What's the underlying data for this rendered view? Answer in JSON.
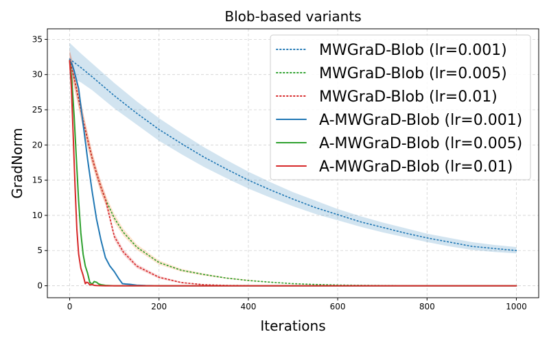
{
  "chart_data": {
    "type": "line",
    "title": "Blob-based variants",
    "xlabel": "Iterations",
    "ylabel": "GradNorm",
    "xlim": [
      -50,
      1050
    ],
    "ylim": [
      -1.7,
      36.5
    ],
    "xticks": [
      0,
      200,
      400,
      600,
      800,
      1000
    ],
    "yticks": [
      0,
      5,
      10,
      15,
      20,
      25,
      30,
      35
    ],
    "grid": true,
    "legend_position": "upper-right",
    "series": [
      {
        "name": "MWGraD-Blob (lr=0.001)",
        "color": "#1f77b4",
        "style": "dotted",
        "band_color": "#1f77b4",
        "x": [
          0,
          25,
          50,
          100,
          150,
          200,
          250,
          300,
          350,
          400,
          450,
          500,
          550,
          600,
          650,
          700,
          750,
          800,
          850,
          900,
          950,
          1000
        ],
        "y": [
          32.2,
          31.0,
          29.7,
          27.0,
          24.5,
          22.2,
          20.2,
          18.3,
          16.6,
          15.0,
          13.6,
          12.3,
          11.1,
          10.1,
          9.1,
          8.3,
          7.5,
          6.8,
          6.2,
          5.6,
          5.3,
          5.0
        ],
        "band": [
          [
            34.5,
            29.6
          ],
          [
            33.0,
            28.9
          ],
          [
            31.6,
            27.8
          ],
          [
            28.8,
            25.2
          ],
          [
            26.2,
            22.9
          ],
          [
            23.8,
            20.6
          ],
          [
            21.7,
            18.7
          ],
          [
            19.7,
            16.9
          ],
          [
            17.9,
            15.3
          ],
          [
            16.2,
            13.8
          ],
          [
            14.7,
            12.5
          ],
          [
            13.3,
            11.3
          ],
          [
            12.1,
            10.2
          ],
          [
            10.9,
            9.3
          ],
          [
            9.9,
            8.4
          ],
          [
            9.0,
            7.6
          ],
          [
            8.2,
            6.9
          ],
          [
            7.4,
            6.2
          ],
          [
            6.8,
            5.6
          ],
          [
            6.2,
            5.1
          ],
          [
            5.8,
            4.8
          ],
          [
            5.5,
            4.6
          ]
        ]
      },
      {
        "name": "MWGraD-Blob (lr=0.005)",
        "color": "#2ca02c",
        "style": "dotted",
        "band_color": "#ff7f0e",
        "x": [
          0,
          10,
          20,
          30,
          40,
          50,
          60,
          70,
          80,
          100,
          120,
          150,
          200,
          250,
          300,
          350,
          400,
          450,
          500,
          550,
          600,
          650,
          700,
          800,
          900,
          1000
        ],
        "y": [
          32.0,
          29.5,
          26.5,
          23.5,
          20.8,
          18.2,
          16.0,
          14.0,
          12.3,
          9.6,
          7.6,
          5.5,
          3.3,
          2.2,
          1.6,
          1.1,
          0.75,
          0.5,
          0.3,
          0.18,
          0.1,
          0.06,
          0.03,
          0.01,
          0.0,
          0.0
        ],
        "band": [
          [
            33.5,
            30.5
          ],
          [
            30.8,
            28.2
          ],
          [
            27.7,
            25.3
          ],
          [
            24.6,
            22.4
          ],
          [
            21.8,
            19.8
          ],
          [
            19.1,
            17.3
          ],
          [
            16.8,
            15.2
          ],
          [
            14.8,
            13.2
          ],
          [
            13.0,
            11.6
          ],
          [
            10.2,
            9.0
          ],
          [
            8.1,
            7.1
          ],
          [
            5.9,
            5.1
          ],
          [
            3.6,
            3.0
          ],
          [
            2.4,
            2.0
          ],
          [
            1.75,
            1.45
          ],
          [
            1.2,
            1.0
          ],
          [
            0.85,
            0.65
          ],
          [
            0.55,
            0.45
          ],
          [
            0.33,
            0.27
          ],
          [
            0.2,
            0.16
          ],
          [
            0.11,
            0.09
          ],
          [
            0.07,
            0.05
          ],
          [
            0.04,
            0.02
          ],
          [
            0.01,
            0.01
          ],
          [
            0,
            0
          ],
          [
            0,
            0
          ]
        ]
      },
      {
        "name": "MWGraD-Blob (lr=0.01)",
        "color": "#d62728",
        "style": "dotted",
        "band_color": "#d62728",
        "x": [
          0,
          10,
          20,
          30,
          40,
          50,
          60,
          70,
          80,
          100,
          120,
          150,
          200,
          250,
          300,
          350,
          400,
          500,
          600,
          800,
          1000
        ],
        "y": [
          32.0,
          29.5,
          26.5,
          23.5,
          20.8,
          18.2,
          16.0,
          14.0,
          12.3,
          7.0,
          4.8,
          2.8,
          1.2,
          0.45,
          0.15,
          0.05,
          0.02,
          0.0,
          0.0,
          0.0,
          0.0
        ],
        "band": [
          [
            33.5,
            30.5
          ],
          [
            30.8,
            28.2
          ],
          [
            27.7,
            25.3
          ],
          [
            24.6,
            22.4
          ],
          [
            21.8,
            19.8
          ],
          [
            19.1,
            17.3
          ],
          [
            16.8,
            15.2
          ],
          [
            14.8,
            13.2
          ],
          [
            13.0,
            11.6
          ],
          [
            7.5,
            6.5
          ],
          [
            5.2,
            4.4
          ],
          [
            3.1,
            2.5
          ],
          [
            1.4,
            1.0
          ],
          [
            0.55,
            0.35
          ],
          [
            0.2,
            0.1
          ],
          [
            0.07,
            0.03
          ],
          [
            0.03,
            0.01
          ],
          [
            0,
            0
          ],
          [
            0,
            0
          ],
          [
            0,
            0
          ],
          [
            0,
            0
          ]
        ]
      },
      {
        "name": "A-MWGraD-Blob (lr=0.001)",
        "color": "#1f77b4",
        "style": "solid",
        "x": [
          0,
          5,
          10,
          20,
          30,
          40,
          50,
          60,
          70,
          80,
          90,
          100,
          110,
          118,
          125,
          135,
          150,
          170,
          200,
          300,
          500,
          1000
        ],
        "y": [
          32.0,
          31.5,
          30.5,
          28.0,
          23.0,
          18.0,
          13.5,
          9.5,
          6.5,
          4.0,
          2.8,
          2.0,
          1.0,
          0.3,
          0.25,
          0.2,
          0.08,
          0.02,
          0.0,
          0.0,
          0.0,
          0.0
        ]
      },
      {
        "name": "A-MWGraD-Blob (lr=0.005)",
        "color": "#2ca02c",
        "style": "solid",
        "x": [
          0,
          5,
          10,
          15,
          20,
          25,
          30,
          35,
          40,
          45,
          50,
          55,
          60,
          65,
          70,
          80,
          100,
          200,
          500,
          1000
        ],
        "y": [
          32.0,
          29.0,
          24.0,
          18.0,
          12.0,
          7.5,
          4.5,
          2.8,
          1.8,
          0.5,
          0.2,
          0.6,
          0.5,
          0.25,
          0.15,
          0.05,
          0.0,
          0.0,
          0.0,
          0.0
        ]
      },
      {
        "name": "A-MWGraD-Blob (lr=0.01)",
        "color": "#d62728",
        "style": "solid",
        "x": [
          0,
          4,
          8,
          12,
          16,
          20,
          25,
          30,
          35,
          38,
          42,
          45,
          50,
          55,
          60,
          80,
          200,
          500,
          1000
        ],
        "y": [
          32.0,
          28.0,
          21.0,
          14.0,
          8.0,
          4.5,
          2.5,
          1.5,
          0.3,
          0.5,
          0.4,
          0.1,
          0.2,
          0.05,
          0.03,
          0.0,
          0.0,
          0.0,
          0.0
        ]
      }
    ]
  }
}
